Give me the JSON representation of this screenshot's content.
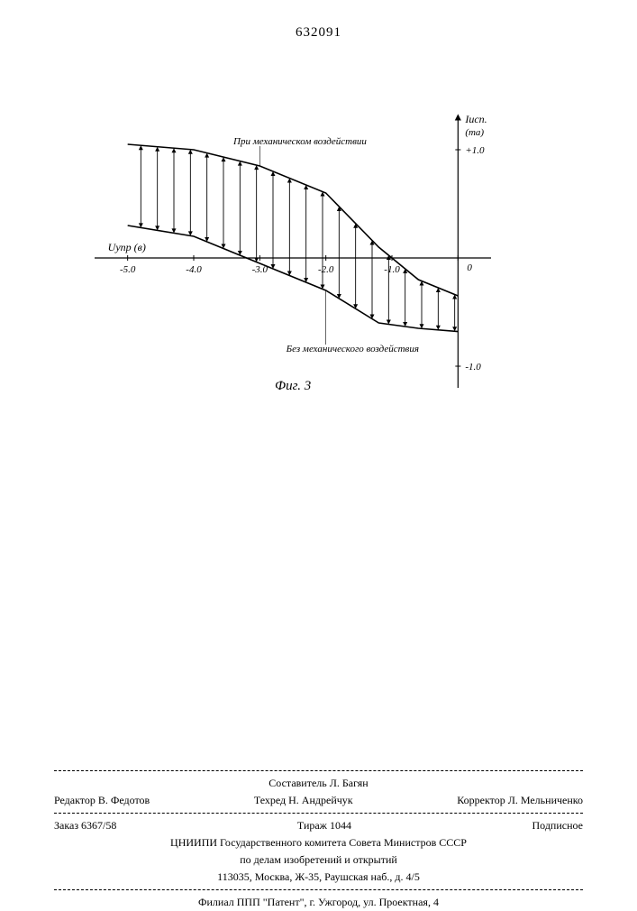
{
  "document_number": "632091",
  "figure": {
    "label": "Фиг. 3",
    "y_axis": {
      "label": "Iисп.",
      "unit": "(mа)",
      "ticks": [
        "+1.0",
        "-1.0"
      ],
      "ylim": [
        -1.2,
        1.3
      ]
    },
    "x_axis": {
      "label": "Uупр (в)",
      "ticks": [
        "-5.0",
        "-4.0",
        "-3.0",
        "-2.0",
        "-1.0",
        "0"
      ],
      "xlim": [
        -5.5,
        0.5
      ]
    },
    "curve_upper_label": "При механическом воздействии",
    "curve_lower_label": "Без механического воздействия",
    "colors": {
      "stroke": "#000000",
      "background": "#ffffff"
    },
    "line_width": 1.2,
    "upper_curve": [
      {
        "x": -5.0,
        "y": 1.05
      },
      {
        "x": -4.0,
        "y": 1.0
      },
      {
        "x": -3.0,
        "y": 0.85
      },
      {
        "x": -2.0,
        "y": 0.6
      },
      {
        "x": -1.2,
        "y": 0.1
      },
      {
        "x": -0.6,
        "y": -0.2
      },
      {
        "x": 0.0,
        "y": -0.35
      }
    ],
    "lower_curve": [
      {
        "x": -5.0,
        "y": 0.3
      },
      {
        "x": -4.0,
        "y": 0.2
      },
      {
        "x": -3.0,
        "y": -0.05
      },
      {
        "x": -2.0,
        "y": -0.3
      },
      {
        "x": -1.2,
        "y": -0.6
      },
      {
        "x": -0.6,
        "y": -0.65
      },
      {
        "x": 0.0,
        "y": -0.68
      }
    ],
    "arrow_x_positions": [
      -4.8,
      -4.55,
      -4.3,
      -4.05,
      -3.8,
      -3.55,
      -3.3,
      -3.05,
      -2.8,
      -2.55,
      -2.3,
      -2.05,
      -1.8,
      -1.55,
      -1.3,
      -1.05,
      -0.8,
      -0.55,
      -0.3,
      -0.05
    ]
  },
  "footer": {
    "compiler": "Составитель Л. Багян",
    "editor": "Редактор В. Федотов",
    "techred": "Техред Н. Андрейчук",
    "corrector": "Корректор Л. Мельниченко",
    "order": "Заказ 6367/58",
    "tirazh": "Тираж 1044",
    "podpisnoe": "Подписное",
    "org_line1": "ЦНИИПИ Государственного комитета Совета Министров СССР",
    "org_line2": "по делам изобретений и открытий",
    "address": "113035, Москва, Ж-35, Раушская наб., д. 4/5",
    "filial": "Филиал ППП \"Патент\", г. Ужгород, ул. Проектная, 4"
  }
}
